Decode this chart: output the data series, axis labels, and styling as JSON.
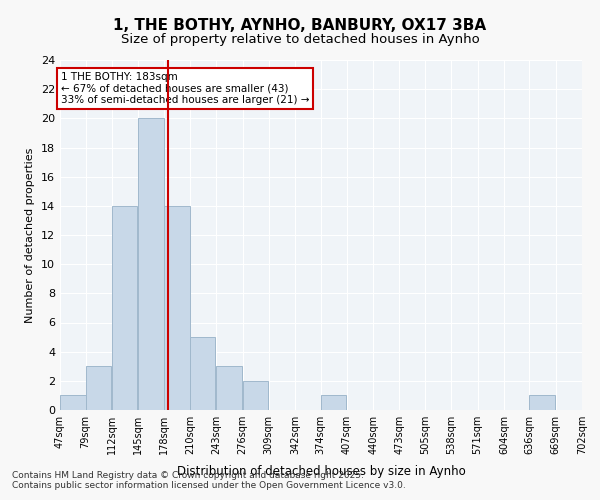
{
  "title1": "1, THE BOTHY, AYNHO, BANBURY, OX17 3BA",
  "title2": "Size of property relative to detached houses in Aynho",
  "xlabel": "Distribution of detached houses by size in Aynho",
  "ylabel": "Number of detached properties",
  "bin_edges": [
    47,
    79,
    112,
    145,
    178,
    210,
    243,
    276,
    309,
    342,
    374,
    407,
    440,
    473,
    505,
    538,
    571,
    604,
    636,
    669,
    702
  ],
  "bin_labels": [
    "47sqm",
    "79sqm",
    "112sqm",
    "145sqm",
    "178sqm",
    "210sqm",
    "243sqm",
    "276sqm",
    "309sqm",
    "342sqm",
    "374sqm",
    "407sqm",
    "440sqm",
    "473sqm",
    "505sqm",
    "538sqm",
    "571sqm",
    "604sqm",
    "636sqm",
    "669sqm",
    "702sqm"
  ],
  "counts": [
    1,
    3,
    14,
    20,
    14,
    5,
    3,
    2,
    0,
    0,
    1,
    0,
    0,
    0,
    0,
    0,
    0,
    0,
    1,
    0
  ],
  "bar_color": "#c8d8e8",
  "bar_edge_color": "#a0b8cc",
  "property_size": 183,
  "vline_color": "#cc0000",
  "annotation_text": "1 THE BOTHY: 183sqm\n← 67% of detached houses are smaller (43)\n33% of semi-detached houses are larger (21) →",
  "annotation_box_color": "#cc0000",
  "ylim": [
    0,
    24
  ],
  "yticks": [
    0,
    2,
    4,
    6,
    8,
    10,
    12,
    14,
    16,
    18,
    20,
    22,
    24
  ],
  "bg_color": "#f0f4f8",
  "footer_text": "Contains HM Land Registry data © Crown copyright and database right 2025.\nContains public sector information licensed under the Open Government Licence v3.0.",
  "grid_color": "#ffffff"
}
